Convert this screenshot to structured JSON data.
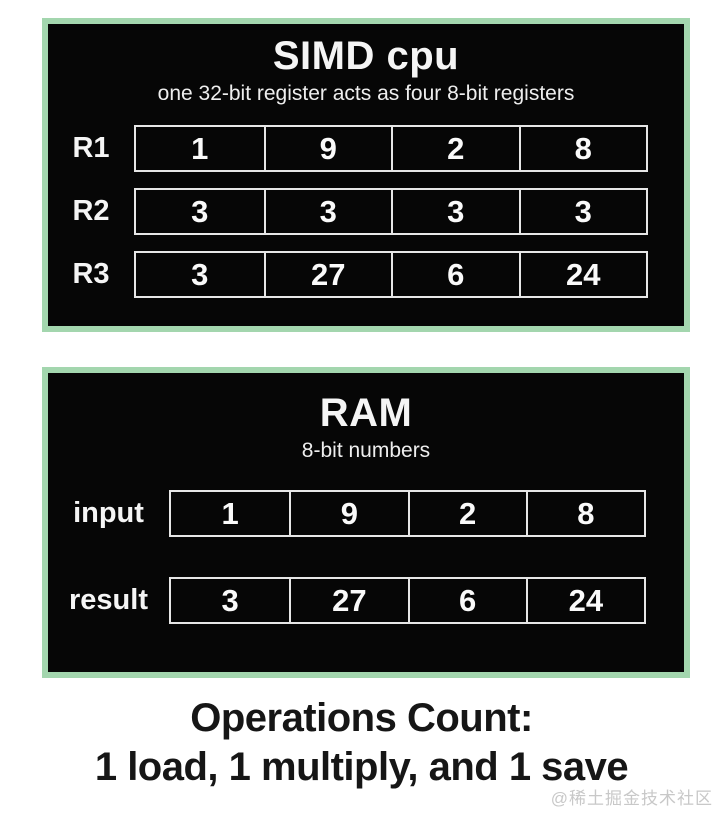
{
  "simd_panel": {
    "title": "SIMD cpu",
    "subtitle": "one 32-bit register acts as four 8-bit registers",
    "rows": [
      {
        "label": "R1",
        "cells": [
          "1",
          "9",
          "2",
          "8"
        ]
      },
      {
        "label": "R2",
        "cells": [
          "3",
          "3",
          "3",
          "3"
        ]
      },
      {
        "label": "R3",
        "cells": [
          "3",
          "27",
          "6",
          "24"
        ]
      }
    ]
  },
  "ram_panel": {
    "title": "RAM",
    "subtitle": "8-bit numbers",
    "rows": [
      {
        "label": "input",
        "cells": [
          "1",
          "9",
          "2",
          "8"
        ]
      },
      {
        "label": "result",
        "cells": [
          "3",
          "27",
          "6",
          "24"
        ]
      }
    ]
  },
  "caption": {
    "line1": "Operations Count:",
    "line2": "1 load, 1 multiply, and 1 save"
  },
  "watermark": "@稀土掘金技术社区",
  "colors": {
    "panel_border": "#a3d6ae",
    "panel_bg": "#060606",
    "cell_border": "#e6e6e6",
    "panel_text": "#f5f5f5",
    "caption_text": "#161616",
    "watermark_text": "#c8c8c8"
  }
}
